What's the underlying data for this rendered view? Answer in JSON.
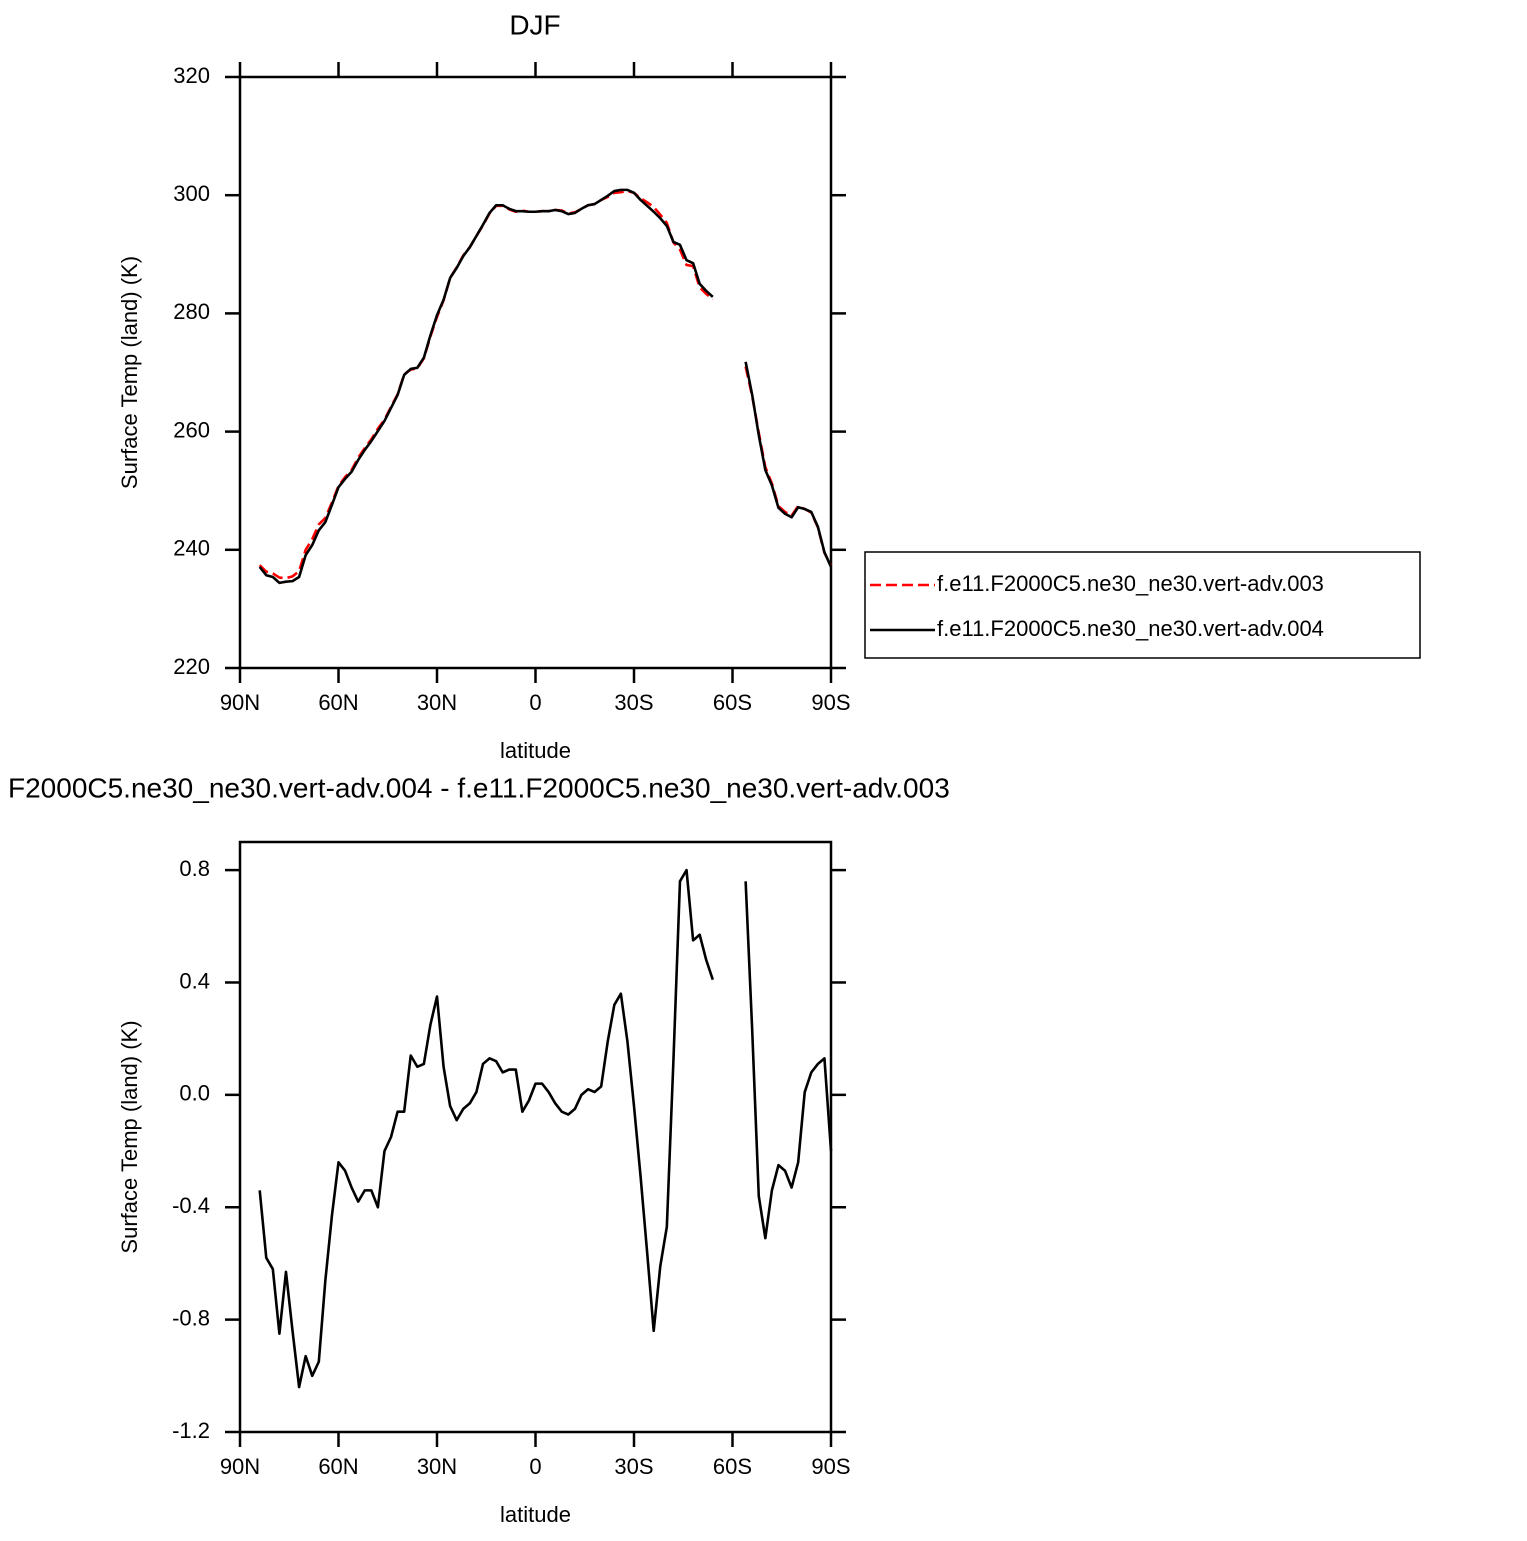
{
  "chart_data": [
    {
      "type": "line",
      "title": "DJF",
      "xlabel": "latitude",
      "ylabel": "Surface Temp (land) (K)",
      "x": [
        84,
        82,
        80,
        78,
        76,
        74,
        72,
        70,
        68,
        66,
        64,
        62,
        60,
        58,
        56,
        54,
        52,
        50,
        48,
        46,
        44,
        42,
        40,
        38,
        36,
        34,
        32,
        30,
        28,
        26,
        24,
        22,
        20,
        18,
        16,
        14,
        12,
        10,
        8,
        6,
        4,
        2,
        0,
        -2,
        -4,
        -6,
        -8,
        -10,
        -12,
        -14,
        -16,
        -18,
        -20,
        -22,
        -24,
        -26,
        -28,
        -30,
        -32,
        -34,
        -36,
        -38,
        -40,
        -42,
        -44,
        -46,
        -48,
        -50,
        -52,
        -54,
        -56,
        -58,
        -60,
        -62,
        -64,
        -66,
        -68,
        -70,
        -72,
        -74,
        -76,
        -78,
        -80,
        -82,
        -84,
        -86,
        -88,
        -90
      ],
      "xlim": [
        90,
        -90
      ],
      "xticks": [
        {
          "value": 90,
          "label": "90N"
        },
        {
          "value": 60,
          "label": "60N"
        },
        {
          "value": 30,
          "label": "30N"
        },
        0,
        {
          "value": -30,
          "label": "30S"
        },
        {
          "value": -60,
          "label": "60S"
        },
        {
          "value": -90,
          "label": "90S"
        }
      ],
      "ylim": [
        220,
        320
      ],
      "yticks": [
        220,
        240,
        260,
        280,
        300,
        320
      ],
      "legend": "right",
      "series": [
        {
          "name": "f.e11.F2000C5.ne30_ne30.vert-adv.003",
          "color": "#ff0000",
          "linestyle": "dashed",
          "values": [
            237.4,
            236.3,
            236.0,
            235.3,
            235.2,
            235.5,
            236.4,
            240.0,
            241.8,
            244.3,
            245.4,
            248.0,
            250.8,
            252.3,
            253.5,
            255.6,
            257.2,
            258.7,
            260.5,
            262.0,
            264.2,
            266.3,
            269.7,
            270.5,
            270.7,
            272.4,
            276.1,
            279.4,
            282.2,
            286.0,
            287.8,
            289.8,
            291.2,
            293.1,
            294.9,
            296.9,
            298.2,
            298.2,
            297.6,
            297.2,
            297.4,
            297.2,
            297.2,
            297.3,
            297.3,
            297.5,
            297.4,
            296.9,
            297.1,
            297.7,
            298.3,
            298.5,
            299.2,
            299.7,
            300.4,
            300.5,
            300.7,
            300.4,
            299.5,
            298.8,
            298.0,
            296.7,
            295.3,
            292.0,
            290.8,
            288.2,
            288.0,
            284.4,
            283.3,
            282.4,
            null,
            null,
            null,
            null,
            271.0,
            266.0,
            259.8,
            254.0,
            251.2,
            247.4,
            246.4,
            245.8,
            247.4,
            246.9,
            246.3,
            243.8,
            239.5,
            237.3
          ]
        },
        {
          "name": "f.e11.F2000C5.ne30_ne30.vert-adv.004",
          "color": "#000000",
          "linestyle": "solid",
          "values": [
            237.1,
            235.7,
            235.4,
            234.4,
            234.6,
            234.7,
            235.4,
            239.1,
            240.8,
            243.3,
            244.7,
            247.6,
            250.6,
            252.0,
            253.2,
            255.2,
            256.9,
            258.4,
            260.1,
            261.8,
            264.0,
            266.2,
            269.6,
            270.6,
            270.8,
            272.5,
            276.3,
            279.7,
            282.3,
            286.0,
            287.7,
            289.7,
            291.2,
            293.1,
            295.0,
            297.0,
            298.3,
            298.3,
            297.7,
            297.3,
            297.3,
            297.2,
            297.2,
            297.3,
            297.3,
            297.5,
            297.3,
            296.8,
            297.0,
            297.7,
            298.3,
            298.5,
            299.2,
            299.9,
            300.7,
            300.9,
            300.9,
            300.4,
            299.2,
            298.2,
            297.2,
            296.1,
            294.8,
            292.1,
            291.6,
            289.0,
            288.5,
            285.0,
            283.8,
            282.8,
            null,
            null,
            null,
            null,
            271.8,
            266.2,
            259.4,
            253.5,
            250.9,
            247.1,
            246.1,
            245.5,
            247.2,
            246.9,
            246.4,
            243.9,
            239.6,
            237.1
          ]
        }
      ]
    },
    {
      "type": "line",
      "title": "F2000C5.ne30_ne30.vert-adv.004 - f.e11.F2000C5.ne30_ne30.vert-adv.003",
      "xlabel": "latitude",
      "ylabel": "Surface Temp (land) (K)",
      "x": [
        84,
        82,
        80,
        78,
        76,
        74,
        72,
        70,
        68,
        66,
        64,
        62,
        60,
        58,
        56,
        54,
        52,
        50,
        48,
        46,
        44,
        42,
        40,
        38,
        36,
        34,
        32,
        30,
        28,
        26,
        24,
        22,
        20,
        18,
        16,
        14,
        12,
        10,
        8,
        6,
        4,
        2,
        0,
        -2,
        -4,
        -6,
        -8,
        -10,
        -12,
        -14,
        -16,
        -18,
        -20,
        -22,
        -24,
        -26,
        -28,
        -30,
        -32,
        -34,
        -36,
        -38,
        -40,
        -42,
        -44,
        -46,
        -48,
        -50,
        -52,
        -54,
        -56,
        -58,
        -60,
        -62,
        -64,
        -66,
        -68,
        -70,
        -72,
        -74,
        -76,
        -78,
        -80,
        -82,
        -84,
        -86,
        -88,
        -90
      ],
      "xlim": [
        90,
        -90
      ],
      "xticks": [
        {
          "value": 90,
          "label": "90N"
        },
        {
          "value": 60,
          "label": "60N"
        },
        {
          "value": 30,
          "label": "30N"
        },
        0,
        {
          "value": -30,
          "label": "30S"
        },
        {
          "value": -60,
          "label": "60S"
        },
        {
          "value": -90,
          "label": "90S"
        }
      ],
      "ylim": [
        -1.2,
        0.9
      ],
      "yticks": [
        -1.2,
        -0.8,
        -0.4,
        {
          "value": 0,
          "label": "0.0"
        },
        0.4,
        0.8
      ],
      "series": [
        {
          "color": "#000000",
          "linestyle": "solid",
          "values": [
            -0.34,
            -0.58,
            -0.62,
            -0.85,
            -0.63,
            -0.84,
            -1.04,
            -0.93,
            -1.0,
            -0.95,
            -0.66,
            -0.43,
            -0.24,
            -0.27,
            -0.33,
            -0.38,
            -0.34,
            -0.34,
            -0.4,
            -0.2,
            -0.15,
            -0.06,
            -0.06,
            0.14,
            0.1,
            0.11,
            0.25,
            0.35,
            0.1,
            -0.04,
            -0.09,
            -0.05,
            -0.03,
            0.01,
            0.11,
            0.13,
            0.12,
            0.08,
            0.09,
            0.09,
            -0.06,
            -0.02,
            0.04,
            0.04,
            0.01,
            -0.03,
            -0.06,
            -0.07,
            -0.05,
            0.0,
            0.02,
            0.01,
            0.03,
            0.19,
            0.32,
            0.36,
            0.19,
            -0.04,
            -0.29,
            -0.56,
            -0.84,
            -0.61,
            -0.47,
            0.12,
            0.76,
            0.8,
            0.55,
            0.57,
            0.48,
            0.41,
            null,
            null,
            null,
            null,
            0.76,
            0.23,
            -0.36,
            -0.51,
            -0.34,
            -0.25,
            -0.27,
            -0.33,
            -0.24,
            0.01,
            0.08,
            0.11,
            0.13,
            -0.2
          ]
        }
      ]
    }
  ]
}
